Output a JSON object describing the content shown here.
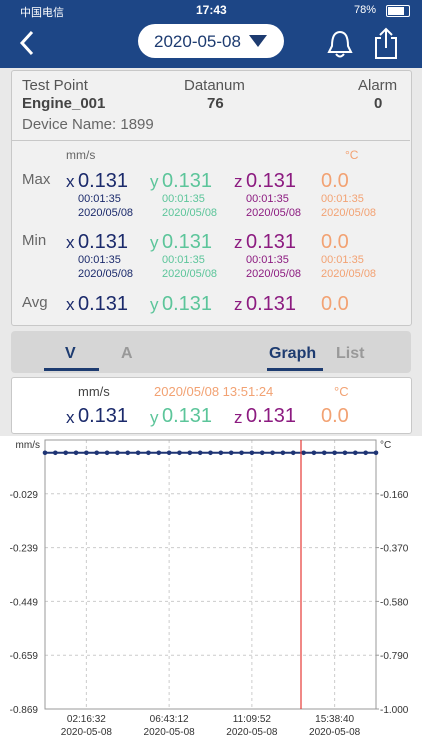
{
  "status_bar": {
    "carrier": "中国电信",
    "time": "17:43",
    "battery": "78%"
  },
  "header": {
    "date": "2020-05-08"
  },
  "summary": {
    "test_point_label": "Test Point",
    "test_point": "Engine_001",
    "datanum_label": "Datanum",
    "datanum": "76",
    "alarm_label": "Alarm",
    "alarm": "0",
    "device_name": "Device Name: 1899"
  },
  "stats": {
    "unit": "mm/s",
    "temp_unit": "°C",
    "axis_letters": [
      "x",
      "y",
      "z"
    ],
    "rows": [
      {
        "label": "Max",
        "values": [
          "0.131",
          "0.131",
          "0.131",
          "0.0"
        ],
        "times": [
          "00:01:35",
          "00:01:35",
          "00:01:35",
          "00:01:35"
        ],
        "dates": [
          "2020/05/08",
          "2020/05/08",
          "2020/05/08",
          "2020/05/08"
        ]
      },
      {
        "label": "Min",
        "values": [
          "0.131",
          "0.131",
          "0.131",
          "0.0"
        ],
        "times": [
          "00:01:35",
          "00:01:35",
          "00:01:35",
          "00:01:35"
        ],
        "dates": [
          "2020/05/08",
          "2020/05/08",
          "2020/05/08",
          "2020/05/08"
        ]
      },
      {
        "label": "Avg",
        "values": [
          "0.131",
          "0.131",
          "0.131",
          "0.0"
        ]
      }
    ]
  },
  "tabs": [
    "V",
    "A"
  ],
  "views": [
    "Graph",
    "List"
  ],
  "current": {
    "unit": "mm/s",
    "timestamp": "2020/05/08 13:51:24",
    "temp_unit": "°C",
    "values": [
      "0.131",
      "0.131",
      "0.131",
      "0.0"
    ]
  },
  "graph": {
    "type": "line",
    "y_unit": "mm/s",
    "y2_unit": "°C",
    "ylim": [
      -0.869,
      0.181
    ],
    "yticks": [
      -0.029,
      -0.239,
      -0.449,
      -0.659,
      -0.869
    ],
    "y2lim": [
      -1.0,
      0.05
    ],
    "y2ticks": [
      {
        "value": -0.16,
        "label": "-0.160"
      },
      {
        "value": -0.37,
        "label": "-0.370"
      },
      {
        "value": -0.58,
        "label": "-0.580"
      },
      {
        "value": -0.79,
        "label": "-0.790"
      },
      {
        "value": -1.0,
        "label": "-1.000"
      }
    ],
    "categories": [
      null,
      null,
      null,
      null,
      "02:16:32",
      null,
      null,
      null,
      null,
      null,
      null,
      null,
      "06:43:12",
      null,
      null,
      null,
      null,
      null,
      null,
      null,
      "11:09:52",
      null,
      null,
      null,
      null,
      null,
      null,
      null,
      "15:38:40",
      null,
      null,
      null,
      null
    ],
    "category_dates": [
      null,
      null,
      null,
      null,
      "2020-05-08",
      null,
      null,
      null,
      null,
      null,
      null,
      null,
      "2020-05-08",
      null,
      null,
      null,
      null,
      null,
      null,
      null,
      "2020-05-08",
      null,
      null,
      null,
      null,
      null,
      null,
      null,
      "2020-05-08",
      null,
      null,
      null,
      null
    ],
    "series": [
      {
        "color": "#1f3575",
        "values": [
          0.131,
          0.131,
          0.131,
          0.131,
          0.131,
          0.131,
          0.131,
          0.131,
          0.131,
          0.131,
          0.131,
          0.131,
          0.131,
          0.131,
          0.131,
          0.131,
          0.131,
          0.131,
          0.131,
          0.131,
          0.131,
          0.131,
          0.131,
          0.131,
          0.131,
          0.131,
          0.131,
          0.131,
          0.131,
          0.131,
          0.131,
          0.131,
          0.131
        ]
      }
    ]
  }
}
